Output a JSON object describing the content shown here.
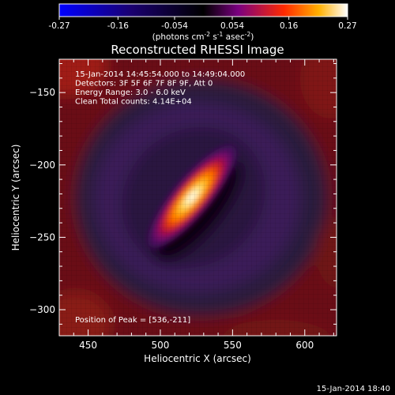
{
  "chart_data": {
    "type": "heatmap",
    "title": "Reconstructed RHESSI Image",
    "xlabel": "Heliocentric X (arcsec)",
    "ylabel": "Heliocentric Y (arcsec)",
    "xlim": [
      430,
      622
    ],
    "ylim": [
      -318,
      -127
    ],
    "x_ticks": [
      450,
      500,
      550,
      600
    ],
    "y_ticks": [
      -150,
      -200,
      -250,
      -300
    ],
    "colorbar": {
      "range": [
        -0.27,
        0.27
      ],
      "ticks": [
        "-0.27",
        "-0.16",
        "-0.054",
        "0.054",
        "0.16",
        "0.27"
      ],
      "unit_base": "(photons cm",
      "unit_exp1": "-2",
      "unit_mid1": " s",
      "unit_exp2": "-1",
      "unit_mid2": " asec",
      "unit_exp3": "-2",
      "unit_end": ")"
    },
    "info_lines": [
      "15-Jan-2014 14:45:54.000 to 14:49:04.000",
      "Detectors: 3F 5F 6F 7F 8F 9F, Att 0",
      "Energy Range: 3.0 - 6.0 keV",
      "Clean     Total counts: 4.14E+04"
    ],
    "peak_label": "Position of Peak = [536,-211]",
    "peak": {
      "x": 536,
      "y": -211
    },
    "source": {
      "center_x": 522,
      "center_y": -222,
      "angle_deg": 50,
      "length_arcsec": 62,
      "width_arcsec": 18,
      "peak_value": 0.27
    }
  },
  "footer": {
    "timestamp": "15-Jan-2014 18:40"
  }
}
